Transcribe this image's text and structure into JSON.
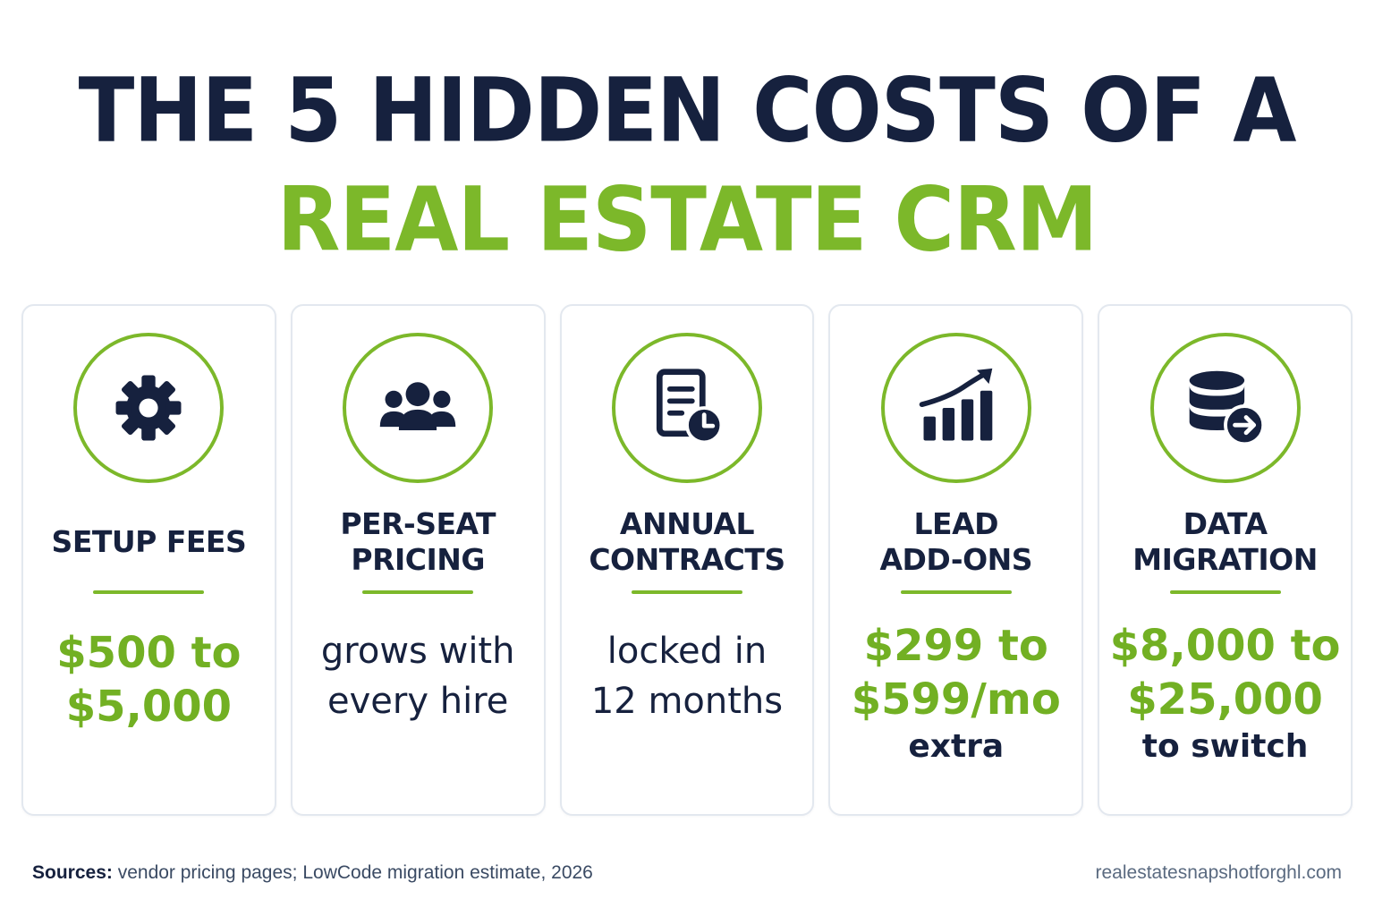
{
  "title": {
    "line1": "THE 5 HIDDEN COSTS OF A",
    "line2": "REAL ESTATE CRM"
  },
  "colors": {
    "navy": "#16213e",
    "green": "#7cb82a",
    "border": "#e3e8ef"
  },
  "cards": [
    {
      "icon": "gear-icon",
      "title": "SETUP FEES",
      "value_green_1": "$500 to",
      "value_green_2": "$5,000"
    },
    {
      "icon": "users-icon",
      "title_1": "PER-SEAT",
      "title_2": "PRICING",
      "value_dark_1": "grows with",
      "value_dark_2": "every hire"
    },
    {
      "icon": "contract-clock-icon",
      "title_1": "ANNUAL",
      "title_2": "CONTRACTS",
      "value_dark_1": "locked in",
      "value_dark_2": "12 months"
    },
    {
      "icon": "chart-growth-icon",
      "title_1": "LEAD",
      "title_2": "ADD-ONS",
      "value_green_1": "$299 to",
      "value_green_2": "$599/mo",
      "note": "extra"
    },
    {
      "icon": "database-transfer-icon",
      "title_1": "DATA",
      "title_2": "MIGRATION",
      "value_green_1": "$8,000 to",
      "value_green_2": "$25,000",
      "note": "to switch"
    }
  ],
  "footer": {
    "sources_label": "Sources:",
    "sources_text": " vendor pricing pages; LowCode migration estimate, 2026",
    "site": "realestatesnapshotforghl.com"
  }
}
